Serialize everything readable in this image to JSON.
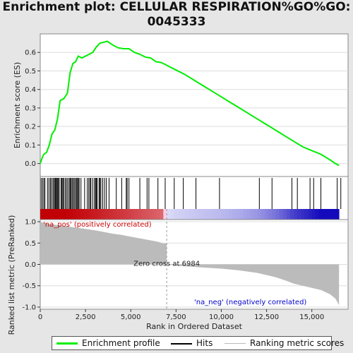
{
  "title": "Enrichment plot: CELLULAR RESPIRATION%GO%GO:\n0045333",
  "chart_data": [
    {
      "type": "line",
      "name": "enrichment-profile",
      "ylabel": "Enrichment score (ES)",
      "xlim": [
        0,
        17000
      ],
      "ylim": [
        -0.07,
        0.7
      ],
      "yticks": [
        0.0,
        0.1,
        0.2,
        0.3,
        0.4,
        0.5,
        0.6
      ],
      "ytick_labels": [
        "0.0",
        "0.1",
        "0.2",
        "0.3",
        "0.4",
        "0.5",
        "0.6"
      ],
      "grid": true,
      "color": "#00ee00",
      "x": [
        0,
        100,
        200,
        350,
        500,
        650,
        800,
        950,
        1100,
        1300,
        1500,
        1650,
        1800,
        1950,
        2100,
        2300,
        2500,
        2700,
        2900,
        3100,
        3300,
        3500,
        3700,
        4000,
        4300,
        4600,
        4900,
        5200,
        5500,
        5800,
        6100,
        6400,
        6700,
        7000,
        7500,
        8000,
        8500,
        9000,
        9500,
        10000,
        10500,
        11000,
        11500,
        12000,
        12500,
        13000,
        13500,
        14000,
        14500,
        15000,
        15500,
        16000,
        16300,
        16500
      ],
      "y": [
        0.0,
        0.03,
        0.05,
        0.06,
        0.1,
        0.16,
        0.18,
        0.24,
        0.34,
        0.35,
        0.38,
        0.49,
        0.54,
        0.55,
        0.58,
        0.57,
        0.58,
        0.59,
        0.6,
        0.63,
        0.65,
        0.655,
        0.66,
        0.64,
        0.625,
        0.62,
        0.62,
        0.6,
        0.59,
        0.575,
        0.57,
        0.55,
        0.545,
        0.53,
        0.505,
        0.48,
        0.45,
        0.42,
        0.39,
        0.36,
        0.33,
        0.3,
        0.27,
        0.24,
        0.21,
        0.18,
        0.15,
        0.12,
        0.09,
        0.07,
        0.05,
        0.02,
        0.0,
        -0.01
      ]
    },
    {
      "type": "scatter",
      "name": "hits",
      "xlim": [
        0,
        17000
      ],
      "hits": [
        50,
        130,
        200,
        260,
        400,
        480,
        560,
        620,
        700,
        760,
        820,
        860,
        900,
        950,
        1000,
        1050,
        1150,
        1200,
        1250,
        1300,
        1380,
        1450,
        1520,
        1600,
        1650,
        1700,
        1760,
        1820,
        1880,
        1950,
        2000,
        2060,
        2100,
        2150,
        2250,
        2450,
        2600,
        2680,
        2750,
        2800,
        2900,
        3000,
        3050,
        3100,
        3150,
        3250,
        3300,
        3350,
        3450,
        3550,
        3650,
        3800,
        4200,
        4500,
        4750,
        4800,
        4900,
        5500,
        5900,
        6000,
        6500,
        6900,
        7400,
        7900,
        8600,
        9900,
        12100,
        12800,
        13900,
        14200,
        14900,
        15100,
        15500,
        16400,
        16600
      ]
    },
    {
      "type": "area",
      "name": "ranked-list-metric",
      "ylabel": "Ranked list metric (PreRanked)",
      "xlabel": "Rank in Ordered Dataset",
      "xlim": [
        0,
        17000
      ],
      "ylim": [
        -1.05,
        1.05
      ],
      "yticks": [
        1.0,
        0.5,
        0.0,
        -0.5,
        -1.0
      ],
      "ytick_labels": [
        "1.0",
        "0.5",
        "0.0",
        "-0.5",
        "-1.0"
      ],
      "xticks": [
        0,
        2500,
        5000,
        7500,
        10000,
        12500,
        15000
      ],
      "xtick_labels": [
        "0",
        "2,500",
        "5,000",
        "7,500",
        "10,000",
        "12,500",
        "15,000"
      ],
      "grid": true,
      "color": "#bbbbbb",
      "x": [
        0,
        100,
        300,
        600,
        1000,
        1500,
        2000,
        2500,
        3000,
        3500,
        4000,
        4500,
        5000,
        5500,
        6000,
        6500,
        6800,
        6984,
        7500,
        8500,
        10000,
        11000,
        12000,
        12500,
        13000,
        13500,
        14000,
        14500,
        15000,
        15500,
        16000,
        16300,
        16500
      ],
      "y": [
        1.0,
        0.98,
        0.96,
        0.94,
        0.92,
        0.89,
        0.86,
        0.83,
        0.8,
        0.76,
        0.72,
        0.69,
        0.65,
        0.61,
        0.57,
        0.53,
        0.49,
        0.0,
        -0.03,
        -0.06,
        -0.1,
        -0.14,
        -0.2,
        -0.25,
        -0.3,
        -0.37,
        -0.45,
        -0.5,
        -0.55,
        -0.6,
        -0.7,
        -0.8,
        -0.95
      ],
      "zero_cross": 6984,
      "zero_cross_label": "Zero cross at 6984",
      "pos_label": "'na_pos' (positively correlated)",
      "neg_label": "'na_neg' (negatively correlated)"
    }
  ],
  "legend": {
    "items": [
      {
        "label": "Enrichment profile",
        "color": "#00ee00"
      },
      {
        "label": "Hits",
        "color": "#000000"
      },
      {
        "label": "Ranking metric scores",
        "color": "#bbbbbb"
      }
    ]
  }
}
